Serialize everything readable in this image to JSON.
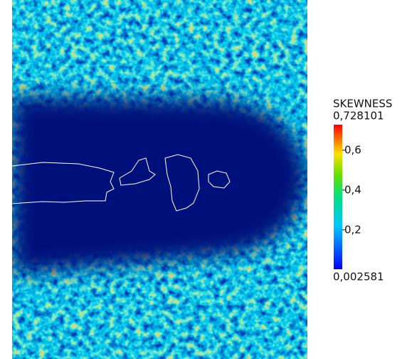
{
  "colorbar": {
    "title": "SKEWNESS",
    "max": {
      "value": 0.728101,
      "label": "0,728101"
    },
    "min": {
      "value": 0.002581,
      "label": "0,002581"
    },
    "ticks": [
      {
        "value": 0.6,
        "label": "0,6"
      },
      {
        "value": 0.4,
        "label": "0,4"
      },
      {
        "value": 0.2,
        "label": "0,2"
      }
    ]
  }
}
